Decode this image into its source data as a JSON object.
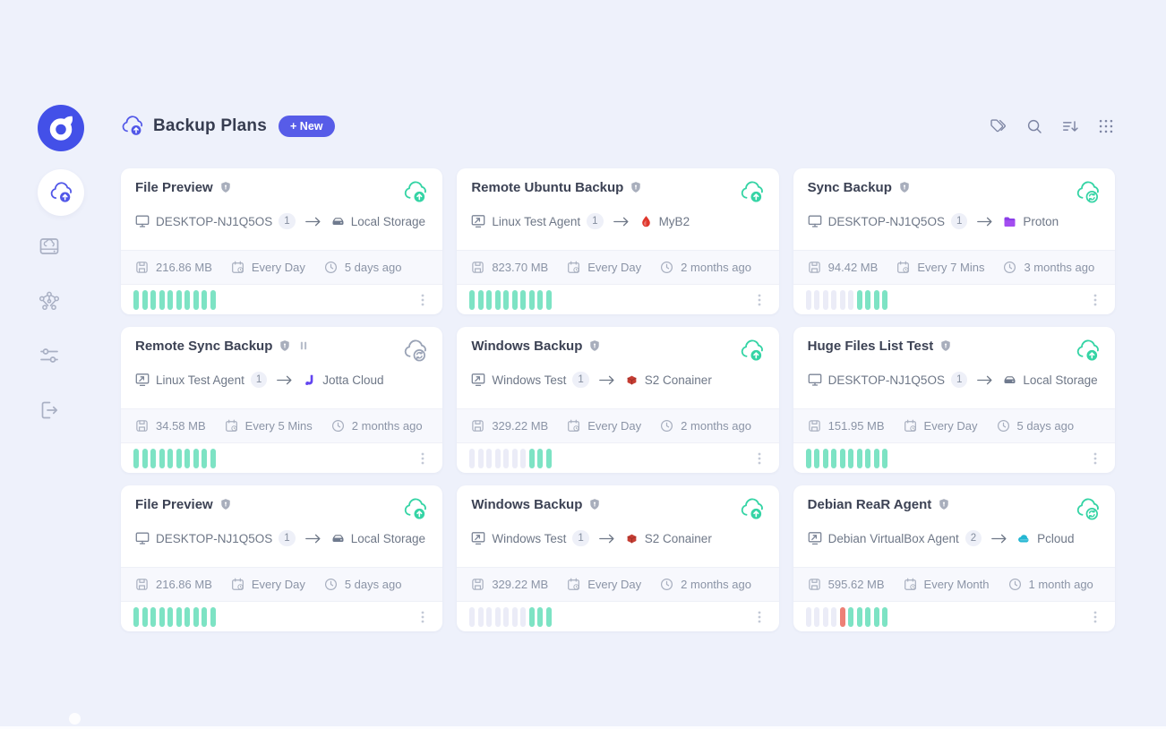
{
  "header": {
    "title": "Backup Plans",
    "icon": "cloud-upload-icon",
    "new_button_label": "+ New",
    "actions": [
      {
        "icon": "tags-icon"
      },
      {
        "icon": "search-icon"
      },
      {
        "icon": "sort-icon"
      },
      {
        "icon": "grid-menu-icon"
      }
    ]
  },
  "sidebar": {
    "logo_icon": "app-logo",
    "items": [
      {
        "icon": "cloud-upload-icon",
        "active": true
      },
      {
        "icon": "storage-drive-icon",
        "active": false
      },
      {
        "icon": "network-nodes-icon",
        "active": false
      },
      {
        "icon": "settings-sliders-icon",
        "active": false
      },
      {
        "icon": "logout-icon",
        "active": false
      }
    ]
  },
  "cards": [
    {
      "title": "File Preview",
      "title_icons": [
        "shield-icon"
      ],
      "status_icon": "cloud-upload-icon",
      "status_color": "teal",
      "source": {
        "icon": "desktop-icon",
        "name": "DESKTOP-NJ1Q5OS",
        "count": "1"
      },
      "destination": {
        "icon": "drive-icon",
        "name": "Local Storage"
      },
      "stats": {
        "size": "216.86 MB",
        "schedule": "Every Day",
        "last_run": "5 days ago"
      },
      "bars": [
        "ok",
        "ok",
        "ok",
        "ok",
        "ok",
        "ok",
        "ok",
        "ok",
        "ok",
        "ok"
      ]
    },
    {
      "title": "Remote Ubuntu Backup",
      "title_icons": [
        "shield-icon"
      ],
      "status_icon": "cloud-upload-icon",
      "status_color": "teal",
      "source": {
        "icon": "remote-agent-icon",
        "name": "Linux Test Agent",
        "count": "1"
      },
      "destination": {
        "icon": "flame-icon",
        "name": "MyB2"
      },
      "stats": {
        "size": "823.70 MB",
        "schedule": "Every Day",
        "last_run": "2 months ago"
      },
      "bars": [
        "ok",
        "ok",
        "ok",
        "ok",
        "ok",
        "ok",
        "ok",
        "ok",
        "ok",
        "ok"
      ]
    },
    {
      "title": "Sync Backup",
      "title_icons": [
        "shield-icon"
      ],
      "status_icon": "cloud-sync-icon",
      "status_color": "teal",
      "source": {
        "icon": "desktop-icon",
        "name": "DESKTOP-NJ1Q5OS",
        "count": "1"
      },
      "destination": {
        "icon": "folder-icon",
        "name": "Proton"
      },
      "stats": {
        "size": "94.42 MB",
        "schedule": "Every 7 Mins",
        "last_run": "3 months ago"
      },
      "bars": [
        "empty",
        "empty",
        "empty",
        "empty",
        "empty",
        "empty",
        "ok",
        "ok",
        "ok",
        "ok"
      ]
    },
    {
      "title": "Remote Sync Backup",
      "title_icons": [
        "shield-icon",
        "pause-icon"
      ],
      "status_icon": "cloud-sync-icon",
      "status_color": "gray",
      "source": {
        "icon": "remote-agent-icon",
        "name": "Linux Test Agent",
        "count": "1"
      },
      "destination": {
        "icon": "jotta-icon",
        "name": "Jotta Cloud"
      },
      "stats": {
        "size": "34.58 MB",
        "schedule": "Every 5 Mins",
        "last_run": "2 months ago"
      },
      "bars": [
        "ok",
        "ok",
        "ok",
        "ok",
        "ok",
        "ok",
        "ok",
        "ok",
        "ok",
        "ok"
      ]
    },
    {
      "title": "Windows Backup",
      "title_icons": [
        "shield-icon"
      ],
      "status_icon": "cloud-upload-icon",
      "status_color": "teal",
      "source": {
        "icon": "remote-agent-icon",
        "name": "Windows Test",
        "count": "1"
      },
      "destination": {
        "icon": "cube-icon",
        "name": "S2 Conainer"
      },
      "stats": {
        "size": "329.22 MB",
        "schedule": "Every Day",
        "last_run": "2 months ago"
      },
      "bars": [
        "empty",
        "empty",
        "empty",
        "empty",
        "empty",
        "empty",
        "empty",
        "ok",
        "ok",
        "ok"
      ]
    },
    {
      "title": "Huge Files List Test",
      "title_icons": [
        "shield-icon"
      ],
      "status_icon": "cloud-upload-icon",
      "status_color": "teal",
      "source": {
        "icon": "desktop-icon",
        "name": "DESKTOP-NJ1Q5OS",
        "count": "1"
      },
      "destination": {
        "icon": "drive-icon",
        "name": "Local Storage"
      },
      "stats": {
        "size": "151.95 MB",
        "schedule": "Every Day",
        "last_run": "5 days ago"
      },
      "bars": [
        "ok",
        "ok",
        "ok",
        "ok",
        "ok",
        "ok",
        "ok",
        "ok",
        "ok",
        "ok"
      ]
    },
    {
      "title": "File Preview",
      "title_icons": [
        "shield-icon"
      ],
      "status_icon": "cloud-upload-icon",
      "status_color": "teal",
      "source": {
        "icon": "desktop-icon",
        "name": "DESKTOP-NJ1Q5OS",
        "count": "1"
      },
      "destination": {
        "icon": "drive-icon",
        "name": "Local Storage"
      },
      "stats": {
        "size": "216.86 MB",
        "schedule": "Every Day",
        "last_run": "5 days ago"
      },
      "bars": [
        "ok",
        "ok",
        "ok",
        "ok",
        "ok",
        "ok",
        "ok",
        "ok",
        "ok",
        "ok"
      ]
    },
    {
      "title": "Windows Backup",
      "title_icons": [
        "shield-icon"
      ],
      "status_icon": "cloud-upload-icon",
      "status_color": "teal",
      "source": {
        "icon": "remote-agent-icon",
        "name": "Windows Test",
        "count": "1"
      },
      "destination": {
        "icon": "cube-icon",
        "name": "S2 Conainer"
      },
      "stats": {
        "size": "329.22 MB",
        "schedule": "Every Day",
        "last_run": "2 months ago"
      },
      "bars": [
        "empty",
        "empty",
        "empty",
        "empty",
        "empty",
        "empty",
        "empty",
        "ok",
        "ok",
        "ok"
      ]
    },
    {
      "title": "Debian ReaR Agent",
      "title_icons": [
        "shield-icon"
      ],
      "status_icon": "cloud-sync-icon",
      "status_color": "teal",
      "source": {
        "icon": "remote-agent-icon",
        "name": "Debian VirtualBox Agent",
        "count": "2"
      },
      "destination": {
        "icon": "pcloud-icon",
        "name": "Pcloud"
      },
      "stats": {
        "size": "595.62 MB",
        "schedule": "Every Month",
        "last_run": "1 month ago"
      },
      "bars": [
        "empty",
        "empty",
        "empty",
        "empty",
        "fail",
        "ok",
        "ok",
        "ok",
        "ok",
        "ok"
      ]
    }
  ],
  "colors": {
    "background": "#eef1fb",
    "card": "#ffffff",
    "accent_indigo": "#575ce8",
    "status_teal": "#35d4a5",
    "bar_ok": "#7de3c4",
    "bar_empty": "#ebecf7",
    "bar_fail": "#ed8076",
    "b2_red": "#df372d",
    "proton_purple": "#8b3fe8",
    "jotta_purple": "#6245f0",
    "s2_red": "#c63d33",
    "pcloud_cyan": "#25b7d3"
  }
}
